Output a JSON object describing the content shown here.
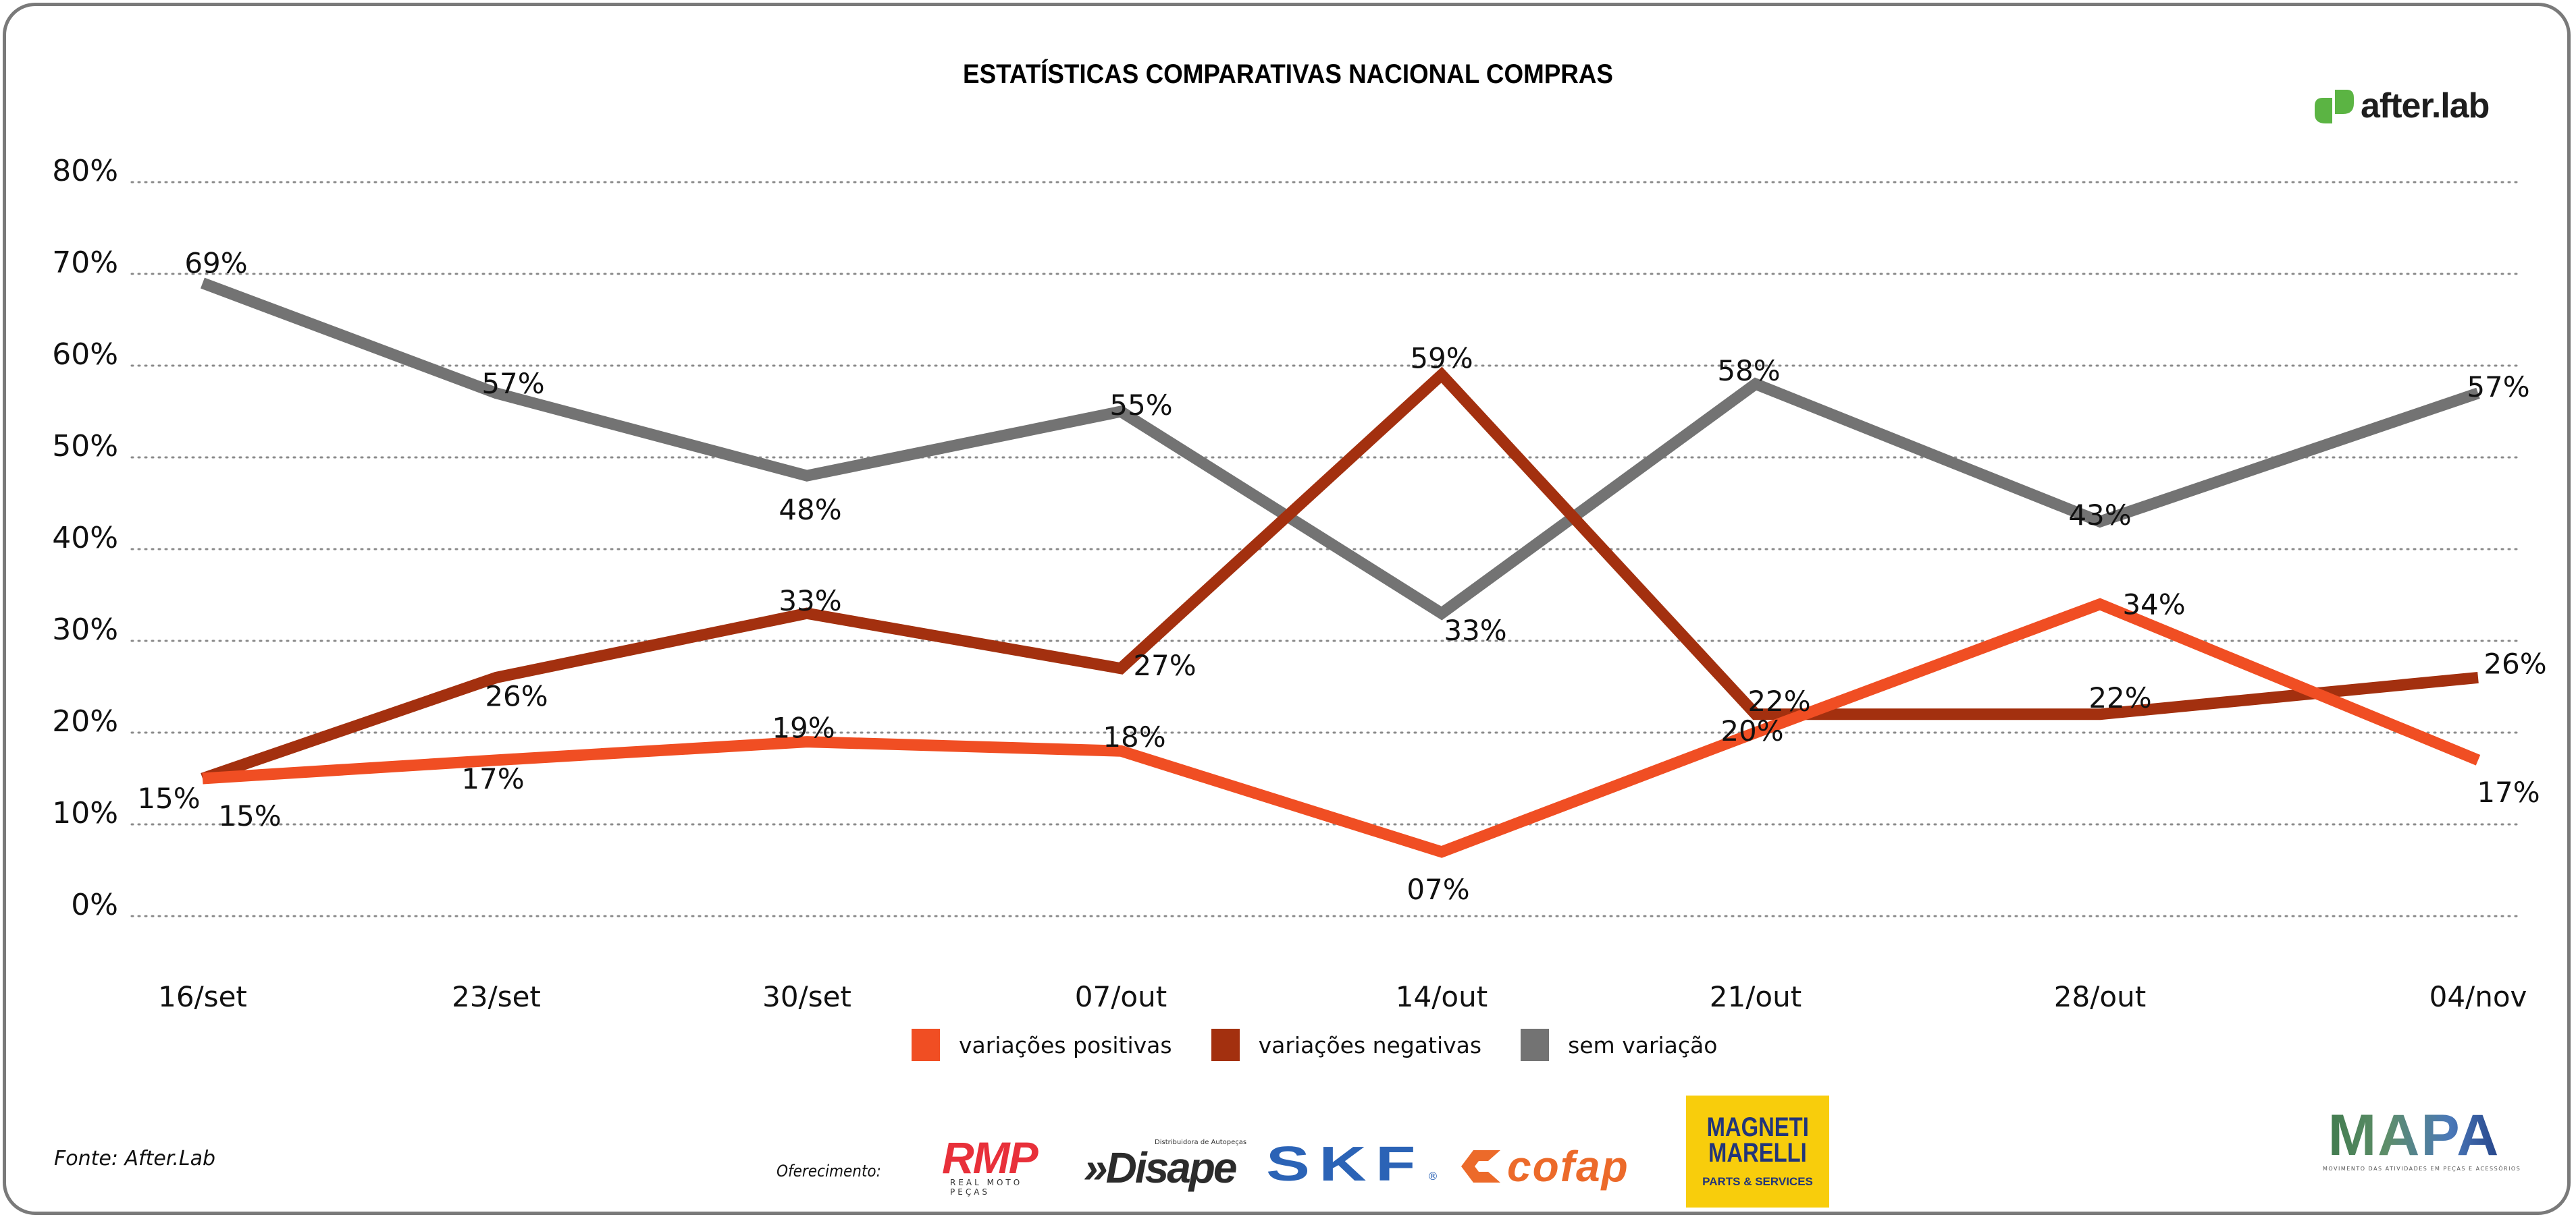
{
  "header": {
    "title": "ESTATÍSTICAS COMPARATIVAS NACIONAL COMPRAS",
    "brand_logo": "after.lab",
    "brand_logo_icon": "after-lab-leaf-icon"
  },
  "chart_data": {
    "type": "line",
    "title": "ESTATÍSTICAS COMPARATIVAS NACIONAL COMPRAS",
    "xlabel": "",
    "ylabel": "",
    "ylim": [
      0,
      80
    ],
    "y_ticks": [
      "0%",
      "10%",
      "20%",
      "30%",
      "40%",
      "50%",
      "60%",
      "70%",
      "80%"
    ],
    "y_tick_values": [
      0,
      10,
      20,
      30,
      40,
      50,
      60,
      70,
      80
    ],
    "grid": true,
    "grid_style": "dotted",
    "categories": [
      "16/set",
      "23/set",
      "30/set",
      "07/out",
      "14/out",
      "21/out",
      "28/out",
      "04/nov"
    ],
    "series": [
      {
        "name": "variações positivas",
        "color": "#f04e23",
        "values": [
          15,
          17,
          19,
          18,
          7,
          20,
          34,
          17
        ],
        "labels": [
          "15%",
          "17%",
          "19%",
          "18%",
          "07%",
          "20%",
          "34%",
          "17%"
        ]
      },
      {
        "name": "variações negativas",
        "color": "#a3300f",
        "values": [
          15,
          26,
          33,
          27,
          59,
          22,
          22,
          26
        ],
        "labels": [
          "15%",
          "26%",
          "33%",
          "27%",
          "59%",
          "22%",
          "22%",
          "26%"
        ]
      },
      {
        "name": "sem variação",
        "color": "#737373",
        "values": [
          69,
          57,
          48,
          55,
          33,
          58,
          43,
          57
        ],
        "labels": [
          "69%",
          "57%",
          "48%",
          "55%",
          "33%",
          "58%",
          "43%",
          "57%"
        ]
      }
    ],
    "legend": {
      "position": "bottom-center",
      "entries": [
        "variações positivas",
        "variações negativas",
        "sem variação"
      ]
    }
  },
  "footer": {
    "source": "Fonte: After.Lab",
    "sponsor_label": "Oferecimento:",
    "sponsors": {
      "rmp": {
        "name": "RMP",
        "subtitle": "REAL MOTO PEÇAS"
      },
      "disape": {
        "name": "»Disape",
        "subtitle": "Distribuidora de Autopeças"
      },
      "skf": {
        "name": "SKF",
        "registered": "®"
      },
      "cofap": {
        "name": "cofap"
      },
      "magneti": {
        "line1": "MAGNETI",
        "line2": "MARELLI",
        "line3": "PARTS & SERVICES"
      },
      "mapa": {
        "name": "MAPA",
        "subtitle": "MOVIMENTO DAS ATIVIDADES EM PEÇAS E ACESSÓRIOS"
      }
    }
  }
}
